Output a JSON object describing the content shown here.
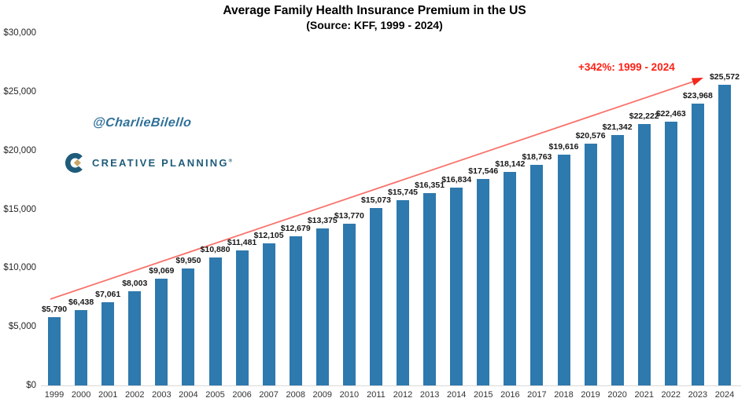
{
  "header": {
    "title": "Average Family Health Insurance Premium in the US",
    "subtitle": "(Source: KFF, 1999 - 2024)"
  },
  "watermark": {
    "handle": "@CharlieBilello"
  },
  "logo": {
    "name": "CREATIVE PLANNING",
    "mark": "®"
  },
  "annotation": {
    "text": "+342%: 1999 - 2024"
  },
  "colors": {
    "bar": "#2e79ae",
    "annotation_text": "#ff1f14",
    "trend_line": "#f8736c",
    "trend_arrowhead": "#f3271c",
    "watermark": "#2e7099",
    "logo_navy": "#1f5c7b",
    "logo_gold": "#c9a86a",
    "axis_text": "#262626"
  },
  "chart_data": {
    "type": "bar",
    "title": "Average Family Health Insurance Premium in the US",
    "subtitle": "(Source: KFF, 1999 - 2024)",
    "categories": [
      "1999",
      "2000",
      "2001",
      "2002",
      "2003",
      "2004",
      "2005",
      "2006",
      "2007",
      "2008",
      "2009",
      "2010",
      "2011",
      "2012",
      "2013",
      "2014",
      "2015",
      "2016",
      "2017",
      "2018",
      "2019",
      "2020",
      "2021",
      "2022",
      "2023",
      "2024"
    ],
    "values": [
      5790,
      6438,
      7061,
      8003,
      9069,
      9950,
      10880,
      11481,
      12105,
      12679,
      13375,
      13770,
      15073,
      15745,
      16351,
      16834,
      17546,
      18142,
      18763,
      19616,
      20576,
      21342,
      22222,
      22463,
      23968,
      25572
    ],
    "data_labels": [
      "$5,790",
      "$6,438",
      "$7,061",
      "$8,003",
      "$9,069",
      "$9,950",
      "$10,880",
      "$11,481",
      "$12,105",
      "$12,679",
      "$13,375",
      "$13,770",
      "$15,073",
      "$15,745",
      "$16,351",
      "$16,834",
      "$17,546",
      "$18,142",
      "$18,763",
      "$19,616",
      "$20,576",
      "$21,342",
      "$22,222",
      "$22,463",
      "$23,968",
      "$25,572"
    ],
    "xlabel": "",
    "ylabel": "",
    "ylim": [
      0,
      30000
    ],
    "y_tick_values": [
      0,
      5000,
      10000,
      15000,
      20000,
      25000,
      30000
    ],
    "y_tick_labels": [
      "$0",
      "$5,000",
      "$10,000",
      "$15,000",
      "$20,000",
      "$25,000",
      "$30,000"
    ],
    "grid": false,
    "legend": "none",
    "annotation": "+342%: 1999 - 2024"
  }
}
